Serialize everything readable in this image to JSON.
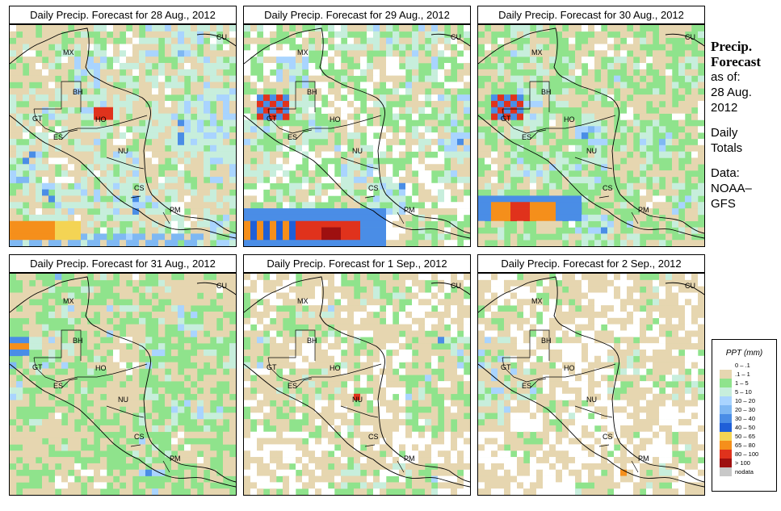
{
  "panels": [
    {
      "title": "Daily Precip. Forecast for  28 Aug., 2012",
      "seed": 11,
      "wet": 0.45,
      "dry": 0.3,
      "white": 0.16,
      "hotspots": [
        "storm_sw_left",
        "storm_ho",
        "band_south"
      ]
    },
    {
      "title": "Daily Precip. Forecast for  29 Aug., 2012",
      "seed": 23,
      "wet": 0.35,
      "dry": 0.18,
      "white": 0.28,
      "hotspots": [
        "band_south_heavy",
        "storm_gt"
      ]
    },
    {
      "title": "Daily Precip. Forecast for  30 Aug., 2012",
      "seed": 37,
      "wet": 0.32,
      "dry": 0.28,
      "white": 0.12,
      "hotspots": [
        "band_south_mid",
        "storm_gt"
      ]
    },
    {
      "title": "Daily Precip. Forecast for  31 Aug., 2012",
      "seed": 41,
      "wet": 0.18,
      "dry": 0.38,
      "white": 0.12,
      "hotspots": [
        "storm_west"
      ]
    },
    {
      "title": "Daily Precip. Forecast for   1 Sep., 2012",
      "seed": 53,
      "wet": 0.2,
      "dry": 0.3,
      "white": 0.3,
      "hotspots": [
        "storm_nu"
      ]
    },
    {
      "title": "Daily Precip. Forecast for   2 Sep., 2012",
      "seed": 67,
      "wet": 0.16,
      "dry": 0.34,
      "white": 0.36,
      "hotspots": [
        "pm_orange"
      ]
    }
  ],
  "country_labels": [
    "MX",
    "BH",
    "GT",
    "HO",
    "ES",
    "NU",
    "CS",
    "PM",
    "CU"
  ],
  "side": {
    "title_line1": "Precip.",
    "title_line2": "Forecast",
    "asof": "as of:",
    "date_line1": "28 Aug.",
    "date_line2": "2012",
    "daily_line1": "Daily",
    "daily_line2": "Totals",
    "data_line1": "Data:",
    "data_line2": "NOAA–",
    "data_line3": "GFS"
  },
  "legend": {
    "title": "PPT (mm)",
    "items": [
      {
        "label": "0 – .1",
        "color": "#ffffff"
      },
      {
        "label": ".1 – 1",
        "color": "#e6d6b0"
      },
      {
        "label": "1 – 5",
        "color": "#8fe38c"
      },
      {
        "label": "5 – 10",
        "color": "#c7eedc"
      },
      {
        "label": "10 – 20",
        "color": "#a9d4ff"
      },
      {
        "label": "20 – 30",
        "color": "#7fb8f3"
      },
      {
        "label": "30 – 40",
        "color": "#4a8de6"
      },
      {
        "label": "40 – 50",
        "color": "#1f5fd8"
      },
      {
        "label": "50 – 65",
        "color": "#f4d454"
      },
      {
        "label": "65 – 80",
        "color": "#f58f1b"
      },
      {
        "label": "80 – 100",
        "color": "#e0321c"
      },
      {
        "label": "> 100",
        "color": "#9e1010"
      },
      {
        "label": "nodata",
        "color": "#c8c8c8"
      }
    ]
  }
}
